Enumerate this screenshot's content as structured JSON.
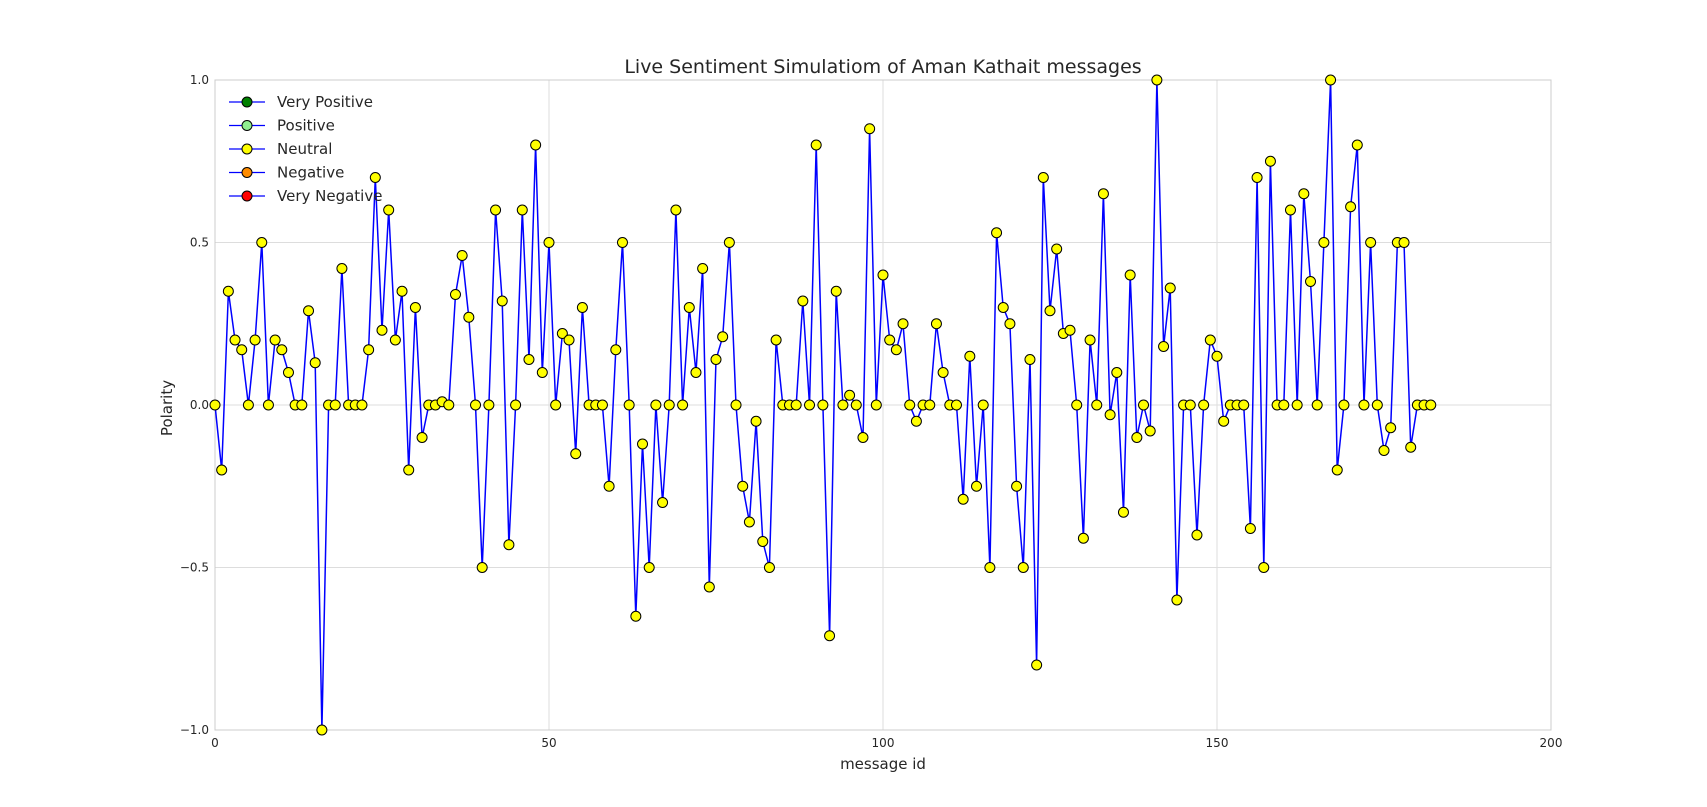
{
  "chart_data": {
    "type": "line",
    "title": "Live Sentiment Simulatiom of Aman Kathait messages",
    "xlabel": "message id",
    "ylabel": "Polarity",
    "xlim": [
      0,
      200
    ],
    "ylim": [
      -1.0,
      1.0
    ],
    "xticks": [
      0,
      50,
      100,
      150,
      200
    ],
    "xtick_labels": [
      "0",
      "50",
      "100",
      "150",
      "200"
    ],
    "yticks": [
      -1.0,
      -0.5,
      0.0,
      0.5,
      1.0
    ],
    "ytick_labels": [
      "−1.0",
      "−0.5",
      "0.0",
      "0.5",
      "1.0"
    ],
    "grid": true,
    "legend_position": "top-left",
    "line_color": "#0000ff",
    "marker_color": "#ffff00",
    "legend": [
      {
        "label": "Very Positive",
        "color": "#008000"
      },
      {
        "label": "Positive",
        "color": "#90ee90"
      },
      {
        "label": "Neutral",
        "color": "#ffff00"
      },
      {
        "label": "Negative",
        "color": "#ff8c00"
      },
      {
        "label": "Very Negative",
        "color": "#ff0000"
      }
    ],
    "series": [
      {
        "values": [
          0,
          -0.2,
          0.35,
          0.2,
          0.17,
          0,
          0.2,
          0.5,
          0,
          0.2,
          0.17,
          0.1,
          0,
          0,
          0.29,
          0.13,
          -1.0,
          0,
          0,
          0.42,
          0,
          0,
          0,
          0.17,
          0.7,
          0.23,
          0.6,
          0.2,
          0.35,
          -0.2,
          0.3,
          -0.1,
          0,
          0,
          0.01,
          0,
          0.34,
          0.46,
          0.27,
          0,
          -0.5,
          0,
          0.6,
          0.32,
          -0.43,
          0,
          0.6,
          0.14,
          0.8,
          0.1,
          0.5,
          0,
          0.22,
          0.2,
          -0.15,
          0.3,
          0,
          0,
          0,
          -0.25,
          0.17,
          0.5,
          0,
          -0.65,
          -0.12,
          -0.5,
          0,
          -0.3,
          0,
          0.6,
          0,
          0.3,
          0.1,
          0.42,
          -0.56,
          0.14,
          0.21,
          0.5,
          0,
          -0.25,
          -0.36,
          -0.05,
          -0.42,
          -0.5,
          0.2,
          0,
          0,
          0,
          0.32,
          0,
          0.8,
          0,
          -0.71,
          0.35,
          0,
          0.03,
          0,
          -0.1,
          0.85,
          0,
          0.4,
          0.2,
          0.17,
          0.25,
          0,
          -0.05,
          0,
          0,
          0.25,
          0.1,
          0,
          0,
          -0.29,
          0.15,
          -0.25,
          0,
          -0.5,
          0.53,
          0.3,
          0.25,
          -0.25,
          -0.5,
          0.14,
          -0.8,
          0.7,
          0.29,
          0.48,
          0.22,
          0.23,
          0,
          -0.41,
          0.2,
          0,
          0.65,
          -0.03,
          0.1,
          -0.33,
          0.4,
          -0.1,
          0,
          -0.08,
          1.0,
          0.18,
          0.36,
          -0.6,
          0,
          0,
          -0.4,
          0,
          0.2,
          0.15,
          -0.05,
          0,
          0,
          0,
          -0.38,
          0.7,
          -0.5,
          0.75,
          0,
          0,
          0.6,
          0,
          0.65,
          0.38,
          0,
          0.5,
          1.0,
          -0.2,
          0,
          0.61,
          0.8,
          0,
          0.5,
          0,
          -0.14,
          -0.07,
          0.5,
          0.5,
          -0.13,
          0,
          0,
          0
        ]
      }
    ]
  }
}
